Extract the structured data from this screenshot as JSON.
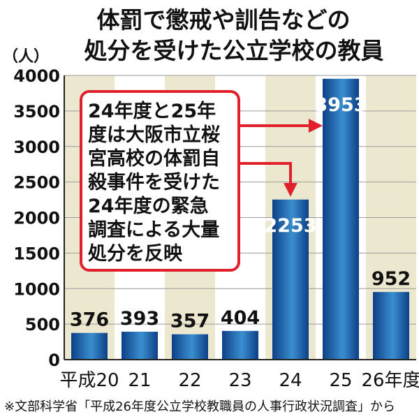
{
  "chart_data": {
    "type": "bar",
    "title_lines": [
      "体罰で懲戒や訓告などの",
      "処分を受けた公立学校の教員"
    ],
    "unit_label": "（人）",
    "categories": [
      "平成20",
      "21",
      "22",
      "23",
      "24",
      "25",
      "26年度"
    ],
    "values": [
      376,
      393,
      357,
      404,
      2253,
      3953,
      952
    ],
    "yticks": [
      "0",
      "500",
      "1000",
      "1500",
      "2000",
      "2500",
      "3000",
      "3500",
      "4000"
    ],
    "ylim": [
      0,
      4000
    ],
    "annotation_lines": [
      "24年度と25年",
      "度は大阪市立桜",
      "宮高校の体罰自",
      "殺事件を受けた",
      "24年度の緊急",
      "調査による大量",
      "処分を反映"
    ],
    "annotation_targets": [
      "24",
      "25"
    ],
    "source": "※文部科学省「平成26年度公立学校教職員の人事行政状況調査」から",
    "colors": {
      "bar_dark": "#0d3f86",
      "bar_light": "#3a8fd0",
      "stripe": "#ece7cf",
      "annotation": "#e0202b"
    }
  }
}
